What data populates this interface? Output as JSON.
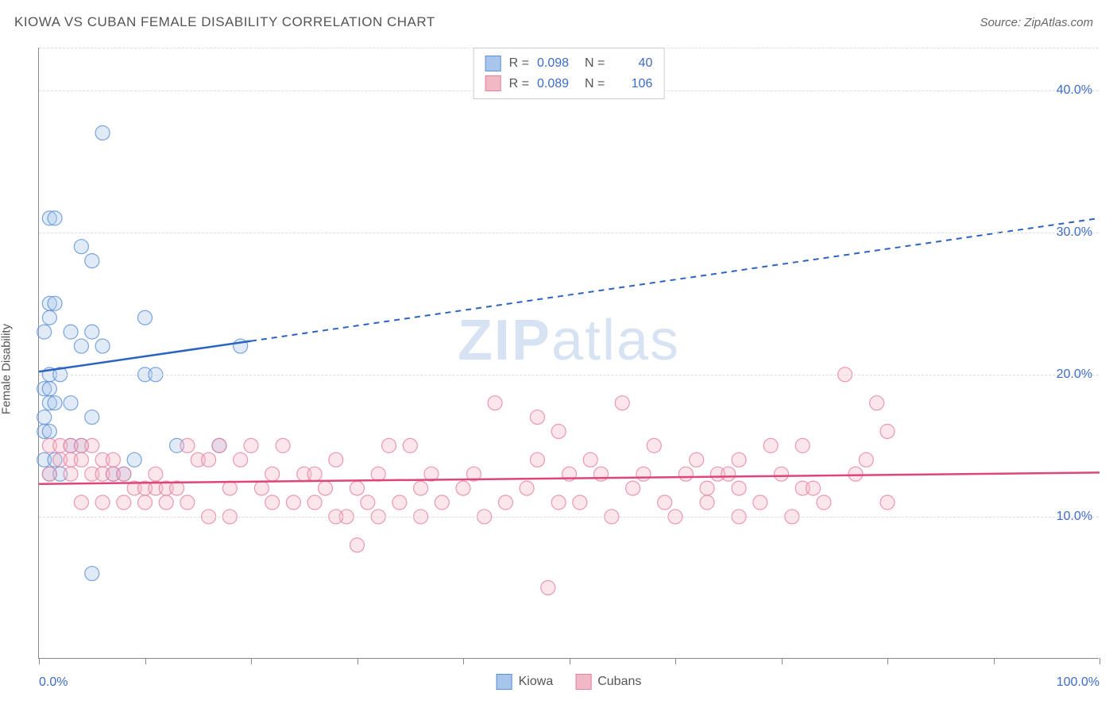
{
  "header": {
    "title": "KIOWA VS CUBAN FEMALE DISABILITY CORRELATION CHART",
    "source": "Source: ZipAtlas.com"
  },
  "watermark": {
    "prefix": "ZIP",
    "suffix": "atlas"
  },
  "chart": {
    "type": "scatter",
    "ylabel": "Female Disability",
    "xlim": [
      0,
      100
    ],
    "ylim": [
      0,
      43
    ],
    "background_color": "#ffffff",
    "grid_color": "#dddddd",
    "axis_color": "#888888",
    "marker_radius": 9,
    "marker_opacity": 0.35,
    "marker_stroke_opacity": 0.8,
    "yticks": [
      {
        "value": 10,
        "label": "10.0%"
      },
      {
        "value": 20,
        "label": "20.0%"
      },
      {
        "value": 30,
        "label": "30.0%"
      },
      {
        "value": 40,
        "label": "40.0%"
      }
    ],
    "xticks_major": [
      0,
      100
    ],
    "xticks_minor": [
      10,
      20,
      30,
      40,
      50,
      60,
      70,
      80,
      90
    ],
    "xtick_labels": [
      {
        "value": 0,
        "label": "0.0%"
      },
      {
        "value": 100,
        "label": "100.0%"
      }
    ],
    "series": [
      {
        "name": "Kiowa",
        "color_fill": "#a8c6ec",
        "color_stroke": "#5b8fd6",
        "trend_solid_to_x": 20,
        "trend_y_at_0": 20.2,
        "trend_y_at_100": 31.0,
        "trend_color": "#2d63c0",
        "trend_width": 2.5,
        "points": [
          [
            1,
            31
          ],
          [
            1.5,
            31
          ],
          [
            4,
            29
          ],
          [
            5,
            28
          ],
          [
            1,
            25
          ],
          [
            1.5,
            25
          ],
          [
            1,
            24
          ],
          [
            0.5,
            23
          ],
          [
            3,
            23
          ],
          [
            5,
            23
          ],
          [
            10,
            24
          ],
          [
            4,
            22
          ],
          [
            6,
            22
          ],
          [
            1,
            20
          ],
          [
            2,
            20
          ],
          [
            0.5,
            19
          ],
          [
            1,
            19
          ],
          [
            10,
            20
          ],
          [
            11,
            20
          ],
          [
            1,
            18
          ],
          [
            1.5,
            18
          ],
          [
            3,
            18
          ],
          [
            5,
            17
          ],
          [
            0.5,
            17
          ],
          [
            6,
            37
          ],
          [
            0.5,
            16
          ],
          [
            1,
            16
          ],
          [
            3,
            15
          ],
          [
            13,
            15
          ],
          [
            4,
            15
          ],
          [
            17,
            15
          ],
          [
            9,
            14
          ],
          [
            7,
            13
          ],
          [
            1,
            13
          ],
          [
            8,
            13
          ],
          [
            5,
            6
          ],
          [
            0.5,
            14
          ],
          [
            1.5,
            14
          ],
          [
            2,
            13
          ],
          [
            19,
            22
          ]
        ]
      },
      {
        "name": "Cubans",
        "color_fill": "#f3b8c6",
        "color_stroke": "#e87fa0",
        "trend_solid_to_x": 100,
        "trend_y_at_0": 12.3,
        "trend_y_at_100": 13.1,
        "trend_color": "#e0457a",
        "trend_width": 2.5,
        "points": [
          [
            1,
            15
          ],
          [
            2,
            15
          ],
          [
            3,
            15
          ],
          [
            4,
            15
          ],
          [
            5,
            15
          ],
          [
            2,
            14
          ],
          [
            3,
            14
          ],
          [
            4,
            14
          ],
          [
            6,
            14
          ],
          [
            7,
            14
          ],
          [
            1,
            13
          ],
          [
            3,
            13
          ],
          [
            5,
            13
          ],
          [
            6,
            13
          ],
          [
            7,
            13
          ],
          [
            8,
            13
          ],
          [
            9,
            12
          ],
          [
            10,
            12
          ],
          [
            11,
            12
          ],
          [
            11,
            13
          ],
          [
            12,
            12
          ],
          [
            13,
            12
          ],
          [
            14,
            15
          ],
          [
            15,
            14
          ],
          [
            16,
            14
          ],
          [
            17,
            15
          ],
          [
            18,
            12
          ],
          [
            19,
            14
          ],
          [
            20,
            15
          ],
          [
            21,
            12
          ],
          [
            22,
            11
          ],
          [
            23,
            15
          ],
          [
            24,
            11
          ],
          [
            25,
            13
          ],
          [
            26,
            11
          ],
          [
            27,
            12
          ],
          [
            28,
            14
          ],
          [
            29,
            10
          ],
          [
            30,
            12
          ],
          [
            30,
            8
          ],
          [
            31,
            11
          ],
          [
            32,
            13
          ],
          [
            33,
            15
          ],
          [
            34,
            11
          ],
          [
            35,
            15
          ],
          [
            36,
            12
          ],
          [
            37,
            13
          ],
          [
            38,
            11
          ],
          [
            40,
            12
          ],
          [
            41,
            13
          ],
          [
            42,
            10
          ],
          [
            43,
            18
          ],
          [
            44,
            11
          ],
          [
            46,
            12
          ],
          [
            47,
            14
          ],
          [
            47,
            17
          ],
          [
            48,
            5
          ],
          [
            49,
            11
          ],
          [
            49,
            16
          ],
          [
            50,
            13
          ],
          [
            51,
            11
          ],
          [
            52,
            14
          ],
          [
            53,
            13
          ],
          [
            54,
            10
          ],
          [
            55,
            18
          ],
          [
            56,
            12
          ],
          [
            57,
            13
          ],
          [
            58,
            15
          ],
          [
            59,
            11
          ],
          [
            60,
            10
          ],
          [
            61,
            13
          ],
          [
            62,
            14
          ],
          [
            63,
            12
          ],
          [
            63,
            11
          ],
          [
            64,
            13
          ],
          [
            65,
            13
          ],
          [
            66,
            12
          ],
          [
            66,
            10
          ],
          [
            66,
            14
          ],
          [
            68,
            11
          ],
          [
            69,
            15
          ],
          [
            70,
            13
          ],
          [
            71,
            10
          ],
          [
            72,
            12
          ],
          [
            72,
            15
          ],
          [
            73,
            12
          ],
          [
            74,
            11
          ],
          [
            76,
            20
          ],
          [
            77,
            13
          ],
          [
            78,
            14
          ],
          [
            79,
            18
          ],
          [
            80,
            16
          ],
          [
            80,
            11
          ],
          [
            4,
            11
          ],
          [
            6,
            11
          ],
          [
            8,
            11
          ],
          [
            10,
            11
          ],
          [
            12,
            11
          ],
          [
            14,
            11
          ],
          [
            16,
            10
          ],
          [
            18,
            10
          ],
          [
            22,
            13
          ],
          [
            26,
            13
          ],
          [
            28,
            10
          ],
          [
            32,
            10
          ],
          [
            36,
            10
          ]
        ]
      }
    ],
    "legend_top": [
      {
        "swatch_fill": "#a8c6ec",
        "swatch_stroke": "#5b8fd6",
        "r_label": "R =",
        "r_val": "0.098",
        "n_label": "N =",
        "n_val": "40"
      },
      {
        "swatch_fill": "#f3b8c6",
        "swatch_stroke": "#e87fa0",
        "r_label": "R =",
        "r_val": "0.089",
        "n_label": "N =",
        "n_val": "106"
      }
    ],
    "legend_bottom": [
      {
        "swatch_fill": "#a8c6ec",
        "swatch_stroke": "#5b8fd6",
        "label": "Kiowa"
      },
      {
        "swatch_fill": "#f3b8c6",
        "swatch_stroke": "#e87fa0",
        "label": "Cubans"
      }
    ]
  }
}
